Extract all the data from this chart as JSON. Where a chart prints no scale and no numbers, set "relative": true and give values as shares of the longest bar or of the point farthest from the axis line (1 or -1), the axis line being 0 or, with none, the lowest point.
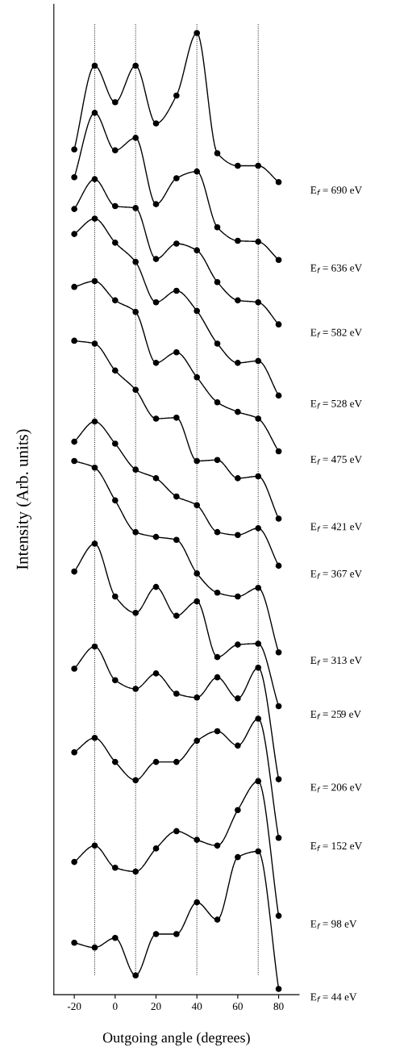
{
  "chart_data": {
    "type": "line",
    "relative": true,
    "xlabel": "Outgoing angle (degrees)",
    "ylabel": "Intensity (Arb. units)",
    "x": [
      -20,
      -10,
      0,
      10,
      20,
      30,
      40,
      50,
      60,
      70,
      80
    ],
    "xlim": [
      -30,
      90
    ],
    "xticks": [
      -20,
      0,
      20,
      40,
      60,
      80
    ],
    "marker": "circle",
    "line_style": "solid",
    "grid": false,
    "legend": false,
    "tick_labels": "x",
    "ref_lines": [
      {
        "axis": "x",
        "value": -10,
        "color": "#000000",
        "line_style": "dotted"
      },
      {
        "axis": "x",
        "value": 10,
        "color": "#000000",
        "line_style": "dotted"
      },
      {
        "axis": "x",
        "value": 40,
        "color": "#000000",
        "line_style": "dotted"
      },
      {
        "axis": "x",
        "value": 70,
        "color": "#000000",
        "line_style": "dotted"
      }
    ],
    "series": [
      {
        "name": "E$_{f}$ = 690 eV",
        "color": "#000000",
        "values": [
          0.879,
          0.966,
          0.928,
          0.966,
          0.906,
          0.935,
          1.0,
          0.875,
          0.862,
          0.862,
          0.845
        ]
      },
      {
        "name": "E$_{f}$ = 636 eV",
        "color": "#000000",
        "values": [
          0.85,
          0.917,
          0.878,
          0.891,
          0.822,
          0.849,
          0.856,
          0.798,
          0.784,
          0.783,
          0.764
        ]
      },
      {
        "name": "E$_{f}$ = 582 eV",
        "color": "#000000",
        "values": [
          0.817,
          0.848,
          0.82,
          0.818,
          0.765,
          0.781,
          0.774,
          0.741,
          0.722,
          0.72,
          0.697
        ]
      },
      {
        "name": "E$_{f}$ = 528 eV",
        "color": "#000000",
        "values": [
          0.791,
          0.807,
          0.782,
          0.762,
          0.72,
          0.732,
          0.711,
          0.677,
          0.657,
          0.659,
          0.623
        ]
      },
      {
        "name": "E$_{f}$ = 475 eV",
        "color": "#000000",
        "values": [
          0.736,
          0.742,
          0.722,
          0.71,
          0.657,
          0.668,
          0.642,
          0.616,
          0.606,
          0.599,
          0.565
        ]
      },
      {
        "name": "E$_{f}$ = 421 eV",
        "color": "#000000",
        "values": [
          0.68,
          0.677,
          0.649,
          0.629,
          0.599,
          0.6,
          0.555,
          0.556,
          0.537,
          0.539,
          0.495
        ]
      },
      {
        "name": "E$_{f}$ = 367 eV",
        "color": "#000000",
        "values": [
          0.575,
          0.596,
          0.573,
          0.546,
          0.537,
          0.518,
          0.509,
          0.481,
          0.478,
          0.485,
          0.446
        ]
      },
      {
        "name": "E$_{f}$ = 313 eV",
        "color": "#000000",
        "values": [
          0.555,
          0.548,
          0.514,
          0.481,
          0.476,
          0.473,
          0.438,
          0.418,
          0.414,
          0.423,
          0.356
        ]
      },
      {
        "name": "E$_{f}$ = 259 eV",
        "color": "#000000",
        "values": [
          0.44,
          0.469,
          0.414,
          0.397,
          0.424,
          0.394,
          0.409,
          0.351,
          0.364,
          0.365,
          0.3
        ]
      },
      {
        "name": "E$_{f}$ = 206 eV",
        "color": "#000000",
        "values": [
          0.339,
          0.362,
          0.327,
          0.318,
          0.334,
          0.313,
          0.309,
          0.33,
          0.308,
          0.34,
          0.224
        ]
      },
      {
        "name": "E$_{f}$ = 152 eV",
        "color": "#000000",
        "values": [
          0.252,
          0.267,
          0.242,
          0.223,
          0.242,
          0.242,
          0.264,
          0.274,
          0.259,
          0.287,
          0.163
        ]
      },
      {
        "name": "E$_{f}$ = 98 eV",
        "color": "#000000",
        "values": [
          0.138,
          0.155,
          0.132,
          0.128,
          0.152,
          0.17,
          0.161,
          0.155,
          0.192,
          0.222,
          0.082
        ]
      },
      {
        "name": "E$_{f}$ = 44 eV",
        "color": "#000000",
        "values": [
          0.054,
          0.049,
          0.059,
          0.02,
          0.063,
          0.063,
          0.096,
          0.078,
          0.143,
          0.149,
          0.006
        ]
      }
    ]
  }
}
